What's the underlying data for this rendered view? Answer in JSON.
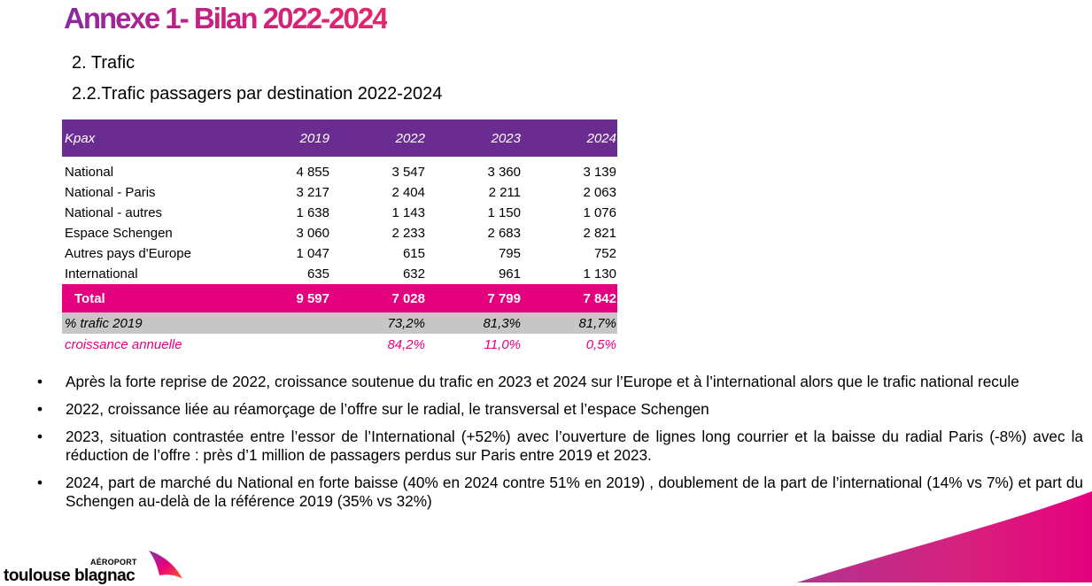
{
  "title": "Annexe 1- Bilan 2022-2024",
  "section": "2. Trafic",
  "subsection": "2.2.Trafic passagers par destination 2022-2024",
  "table": {
    "headers": [
      "Kpax",
      "2019",
      "2022",
      "2023",
      "2024"
    ],
    "rows": [
      [
        "National",
        "4 855",
        "3 547",
        "3 360",
        "3 139"
      ],
      [
        "National - Paris",
        "3 217",
        "2 404",
        "2 211",
        "2 063"
      ],
      [
        "National - autres",
        "1 638",
        "1 143",
        "1 150",
        "1 076"
      ],
      [
        "Espace Schengen",
        "3 060",
        "2 233",
        "2 683",
        "2 821"
      ],
      [
        "Autres pays d'Europe",
        "1 047",
        "615",
        "795",
        "752"
      ],
      [
        "International",
        "635",
        "632",
        "961",
        "1 130"
      ]
    ],
    "total": [
      "Total",
      "9 597",
      "7 028",
      "7 799",
      "7 842"
    ],
    "pct": [
      "% trafic 2019",
      "",
      "73,2%",
      "81,3%",
      "81,7%"
    ],
    "growth": [
      "croissance annuelle",
      "",
      "84,2%",
      "11,0%",
      "0,5%"
    ]
  },
  "bullets": [
    "Après la forte reprise de 2022, croissance soutenue du trafic en 2023 et 2024 sur l’Europe et à l’international alors que le trafic national recule",
    "2022, croissance liée au réamorçage de l’offre sur le radial, le transversal et l’espace Schengen",
    "2023, situation contrastée entre l’essor de l’International (+52%) avec l’ouverture de lignes long courrier et la baisse du radial Paris (-8%) avec la réduction de l’offre : près d’1 million de passagers perdus sur Paris entre 2019 et 2023.",
    "2024, part de marché du National en forte baisse (40% en 2024 contre 51% en 2019) , doublement de la part de l’international (14% vs 7%) et part du Schengen au-delà de la référence 2019 (35% vs 32%)"
  ],
  "bullet_symbol": "•",
  "logo": {
    "tagline": "AÉROPORT",
    "name": "toulouse blagnac"
  },
  "colors": {
    "header_purple": "#6b2c91",
    "total_magenta": "#e5007e",
    "pct_grey": "#c6c6c6",
    "growth_text": "#e5007e"
  }
}
